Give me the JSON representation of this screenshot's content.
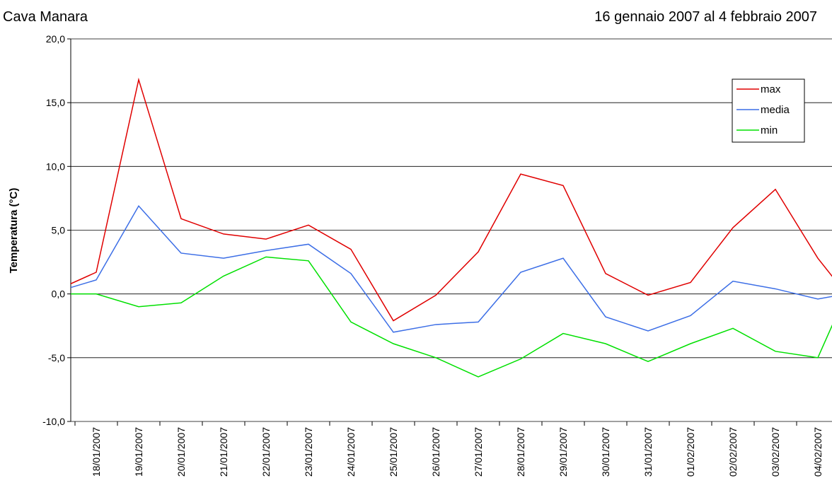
{
  "chart_data": {
    "type": "line",
    "title": "Cava Manara",
    "subtitle": "16 gennaio 2007 al 4 febbraio 2007",
    "y_label": "Temperatura (°C)",
    "categories": [
      null,
      "18/01/2007",
      "19/01/2007",
      "20/01/2007",
      "21/01/2007",
      "22/01/2007",
      "23/01/2007",
      "24/01/2007",
      "25/01/2007",
      "26/01/2007",
      "27/01/2007",
      "28/01/2007",
      "29/01/2007",
      "30/01/2007",
      "31/01/2007",
      "01/02/2007",
      "02/02/2007",
      "03/02/2007",
      "04/02/2007",
      null
    ],
    "series": [
      {
        "name": "max",
        "color": "#e00000",
        "values": [
          0.2,
          1.7,
          16.8,
          5.9,
          4.7,
          4.3,
          5.4,
          3.5,
          -2.1,
          -0.1,
          3.3,
          9.4,
          8.5,
          1.6,
          -0.1,
          0.9,
          5.2,
          8.2,
          2.8,
          -1.4
        ]
      },
      {
        "name": "media",
        "color": "#3c6ee6",
        "values": [
          0.1,
          1.1,
          6.9,
          3.2,
          2.8,
          3.4,
          3.9,
          1.6,
          -3.0,
          -2.4,
          -2.2,
          1.7,
          2.8,
          -1.8,
          -2.9,
          -1.7,
          1.0,
          0.4,
          -0.4,
          0.2
        ]
      },
      {
        "name": "min",
        "color": "#00e000",
        "values": [
          0.0,
          0.0,
          -1.0,
          -0.7,
          1.4,
          2.9,
          2.6,
          -2.2,
          -3.9,
          -5.0,
          -6.5,
          -5.1,
          -3.1,
          -3.9,
          -5.3,
          -3.9,
          -2.7,
          -4.5,
          -5.0,
          2.5
        ]
      }
    ],
    "ylim": [
      -10,
      20
    ],
    "yticks": [
      {
        "value": -10,
        "label": "-10,0"
      },
      {
        "value": -5,
        "label": "-5,0"
      },
      {
        "value": 0,
        "label": "0,0"
      },
      {
        "value": 5,
        "label": "5,0"
      },
      {
        "value": 10,
        "label": "10,0"
      },
      {
        "value": 15,
        "label": "15,0"
      },
      {
        "value": 20,
        "label": "20,0"
      }
    ],
    "grid": true,
    "legend": "top-right"
  }
}
